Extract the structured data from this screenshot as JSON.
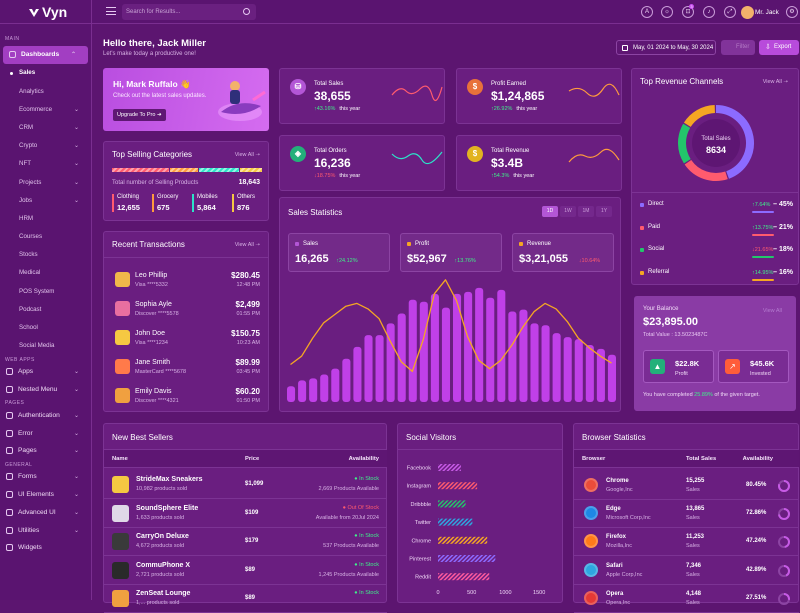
{
  "brand": {
    "name": "Vyn",
    "accent": "#a23ec2"
  },
  "topbar": {
    "search_placeholder": "Search for Results...",
    "user": "Mr. Jack",
    "cart_count": "3",
    "icons": [
      "translate-icon",
      "theme-icon",
      "cart-icon",
      "bell-icon",
      "fullscreen-icon",
      "settings-icon"
    ]
  },
  "sidebar": {
    "sec_main": "MAIN",
    "sec_web": "WEB APPS",
    "sec_pages": "PAGES",
    "sec_general": "GENERAL",
    "dashboards": "Dashboards",
    "subs": [
      "Sales",
      "Analytics",
      "Ecommerce",
      "CRM",
      "Crypto",
      "NFT",
      "Projects",
      "Jobs",
      "HRM",
      "Courses",
      "Stocks",
      "Medical",
      "POS System",
      "Podcast",
      "School",
      "Social Media"
    ],
    "apps": "Apps",
    "nested": "Nested Menu",
    "auth": "Authentication",
    "error": "Error",
    "pages": "Pages",
    "forms": "Forms",
    "ui": "UI Elements",
    "advanced": "Advanced UI",
    "utilities": "Utilities",
    "widgets": "Widgets"
  },
  "header": {
    "greeting": "Hello there, Jack Miller",
    "sub": "Let's make today a productive one!",
    "date_range": "May, 01 2024 to May, 30 2024",
    "filter": "Filter",
    "export": "Export"
  },
  "welcome": {
    "title": "Hi, Mark Ruffalo",
    "emoji": "👋",
    "text": "Check out the latest sales updates.",
    "button": "Upgrade To Pro"
  },
  "stats": [
    {
      "label": "Total Sales",
      "value": "38,655",
      "change": "43.16%",
      "dir": "up",
      "period": "this year",
      "color": "#b356d6"
    },
    {
      "label": "Profit Earned",
      "value": "$1,24,865",
      "change": "26.92%",
      "dir": "up",
      "period": "this year",
      "color": "#e8713a"
    },
    {
      "label": "Total Orders",
      "value": "16,236",
      "change": "18.75%",
      "dir": "down",
      "period": "this year",
      "color": "#23b07a"
    },
    {
      "label": "Total Revenue",
      "value": "$3.4B",
      "change": "54.3%",
      "dir": "up",
      "period": "this year",
      "color": "#e2b321"
    }
  ],
  "categories": {
    "title": "Top Selling Categories",
    "view": "View All",
    "total_label": "Total number of Selling Products",
    "total": "18,643",
    "items": [
      {
        "name": "Clothing",
        "value": "12,655",
        "color": "#ff5b6e"
      },
      {
        "name": "Grocery",
        "value": "675",
        "color": "#ff9b3d"
      },
      {
        "name": "Mobiles",
        "value": "5,864",
        "color": "#2ce3c8"
      },
      {
        "name": "Others",
        "value": "876",
        "color": "#f5c842"
      }
    ]
  },
  "transactions": {
    "title": "Recent Transactions",
    "view": "View All",
    "items": [
      {
        "name": "Leo Phillip",
        "card": "Visa ****5332",
        "amount": "$280.45",
        "time": "12:48 PM"
      },
      {
        "name": "Sophia Ayle",
        "card": "Discover ****5578",
        "amount": "$2,499",
        "time": "01:55 PM"
      },
      {
        "name": "John Doe",
        "card": "Visa ****1234",
        "amount": "$150.75",
        "time": "10:23 AM"
      },
      {
        "name": "Jane Smith",
        "card": "MasterCard ****5678",
        "amount": "$89.99",
        "time": "03:45 PM"
      },
      {
        "name": "Emily Davis",
        "card": "Discover ****4321",
        "amount": "$60.20",
        "time": "01:50 PM"
      }
    ]
  },
  "sales_stats": {
    "title": "Sales Statistics",
    "tabs": [
      "1D",
      "1W",
      "1M",
      "1Y"
    ],
    "boxes": [
      {
        "label": "Sales",
        "value": "16,265",
        "change": "24.12%",
        "dir": "up",
        "color": "#b356d6"
      },
      {
        "label": "Profit",
        "value": "$52,967",
        "change": "13.76%",
        "dir": "up",
        "color": "#f5a623"
      },
      {
        "label": "Revenue",
        "value": "$3,21,055",
        "change": "10.64%",
        "dir": "down",
        "color": "#f5a623"
      }
    ]
  },
  "chart_data": {
    "type": "bar",
    "values": [
      8,
      11,
      12,
      14,
      17,
      22,
      28,
      34,
      34,
      40,
      45,
      52,
      51,
      55,
      48,
      55,
      56,
      58,
      53,
      57,
      46,
      47,
      40,
      39,
      35,
      33,
      32,
      29,
      27,
      24
    ],
    "line": [
      27,
      33,
      46,
      57,
      63,
      69,
      71,
      67,
      60,
      44,
      29,
      22,
      45,
      78,
      88,
      73,
      47,
      30,
      24,
      30,
      41,
      54,
      65,
      71,
      67,
      58,
      46,
      39,
      33,
      28
    ]
  },
  "channels": {
    "title": "Top Revenue Channels",
    "view": "View All",
    "total_label": "Total Sales",
    "total": "8634",
    "items": [
      {
        "name": "Direct",
        "change": "7.64%",
        "dir": "up",
        "pct": "45%",
        "color": "#8c6bff"
      },
      {
        "name": "Paid",
        "change": "13.75%",
        "dir": "up",
        "pct": "21%",
        "color": "#ff5b6e"
      },
      {
        "name": "Social",
        "change": "21.65%",
        "dir": "down",
        "pct": "18%",
        "color": "#23c66b"
      },
      {
        "name": "Referral",
        "change": "14.95%",
        "dir": "up",
        "pct": "16%",
        "color": "#f5a623"
      }
    ]
  },
  "balance": {
    "label": "Your Balance",
    "value": "$23,895.00",
    "view": "View All",
    "total_value": "Total Value : 13.5023487C",
    "profit": "$22.8K",
    "profit_label": "Profit",
    "invested": "$45.6K",
    "invested_label": "Invested",
    "note_pre": "You have completed",
    "note_pct": "25.89%",
    "note_post": "of the given target."
  },
  "best_sellers": {
    "title": "New Best Sellers",
    "headers": [
      "Name",
      "Price",
      "Availability"
    ],
    "items": [
      {
        "name": "StrideMax Sneakers",
        "sold": "10,982 products sold",
        "price": "$1,099",
        "status": "In Stock",
        "avail": "2,669 Products Available",
        "ok": true
      },
      {
        "name": "SoundSphere Elite",
        "sold": "1,633 products sold",
        "price": "$109",
        "status": "Out Of Stock",
        "avail": "Available from 20Jul 2024",
        "ok": false
      },
      {
        "name": "CarryOn Deluxe",
        "sold": "4,672 products sold",
        "price": "$179",
        "status": "In Stock",
        "avail": "537 Products Available",
        "ok": true
      },
      {
        "name": "CommuPhone X",
        "sold": "2,721 products sold",
        "price": "$89",
        "status": "In Stock",
        "avail": "1,245 Products Available",
        "ok": true
      },
      {
        "name": "ZenSeat Lounge",
        "sold": "1,... products sold",
        "price": "$89",
        "status": "In Stock",
        "avail": "",
        "ok": true
      }
    ]
  },
  "social": {
    "title": "Social Visitors",
    "items": [
      {
        "name": "Facebook",
        "value": 340,
        "color": "#c75be6"
      },
      {
        "name": "Instagram",
        "value": 580,
        "color": "#ff5b6e"
      },
      {
        "name": "Dribbble",
        "value": 410,
        "color": "#23c66b"
      },
      {
        "name": "Twitter",
        "value": 510,
        "color": "#2ea6e0"
      },
      {
        "name": "Chrome",
        "value": 730,
        "color": "#f5a623"
      },
      {
        "name": "Pinterest",
        "value": 850,
        "color": "#8c6bff"
      },
      {
        "name": "Reddit",
        "value": 760,
        "color": "#ff5b9e"
      }
    ],
    "ticks": [
      "0",
      "500",
      "1000",
      "1500"
    ]
  },
  "browser": {
    "title": "Browser Statistics",
    "headers": [
      "Browser",
      "Total Sales",
      "Availability"
    ],
    "items": [
      {
        "name": "Chrome",
        "org": "Google,Inc",
        "sales": "15,255",
        "sales_l": "Sales",
        "pct": "80.45%",
        "color": "#ea4c3a"
      },
      {
        "name": "Edge",
        "org": "Microsoft Corp,Inc",
        "sales": "13,865",
        "sales_l": "Sales",
        "pct": "72.86%",
        "color": "#1e88e5"
      },
      {
        "name": "Firefox",
        "org": "Mozilla,Inc",
        "sales": "11,253",
        "sales_l": "Sales",
        "pct": "47.24%",
        "color": "#ff7a1a"
      },
      {
        "name": "Safari",
        "org": "Apple Corp,Inc",
        "sales": "7,346",
        "sales_l": "Sales",
        "pct": "42.89%",
        "color": "#2ea6e0"
      },
      {
        "name": "Opera",
        "org": "Opera,Inc",
        "sales": "4,148",
        "sales_l": "Sales",
        "pct": "27.51%",
        "color": "#e53935"
      }
    ]
  }
}
